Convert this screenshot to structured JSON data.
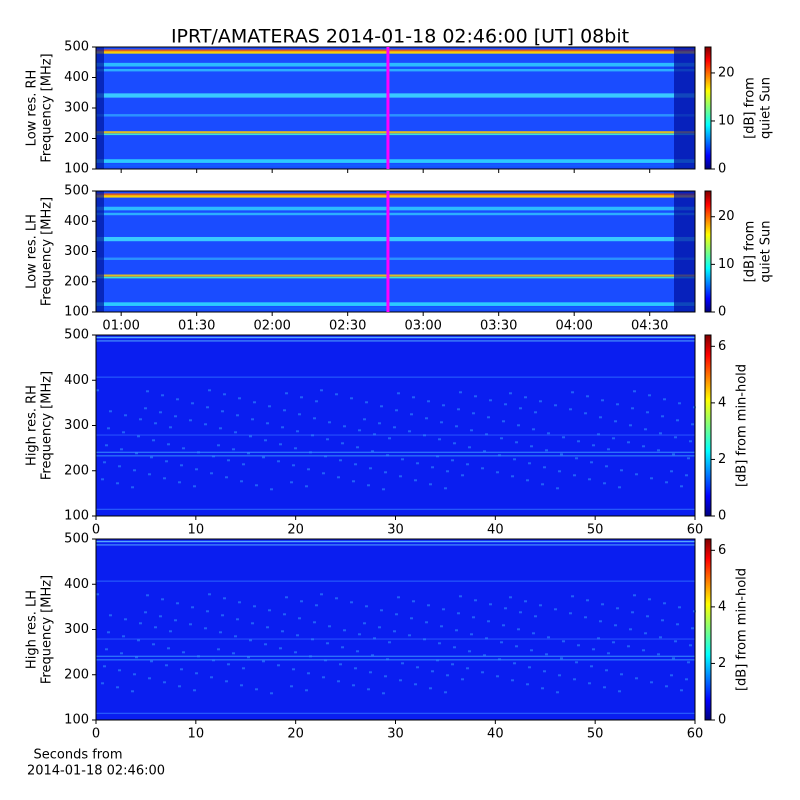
{
  "title": "IPRT/AMATERAS 2014-01-18 02:46:00 [UT]   08bit",
  "chart_data": [
    {
      "type": "heatmap",
      "colormap": "jet",
      "ylabel": [
        "Low res. RH",
        "Frequency [MHz]"
      ],
      "ylim": [
        100,
        500
      ],
      "yticks": [
        100,
        200,
        300,
        400,
        500
      ],
      "xlim": [
        50,
        288
      ],
      "clim": [
        0,
        25.4
      ],
      "cticks": [
        0,
        10,
        20
      ],
      "clabel": [
        "[dB] from",
        "quiet Sun"
      ],
      "vline": {
        "x": 166,
        "color": "#ff00ff"
      }
    },
    {
      "type": "heatmap",
      "colormap": "jet",
      "ylabel": [
        "Low res. LH",
        "Frequency [MHz]"
      ],
      "ylim": [
        100,
        500
      ],
      "yticks": [
        100,
        200,
        300,
        400,
        500
      ],
      "xlim": [
        50,
        288
      ],
      "xticks": [
        {
          "value": 60,
          "label": "01:00"
        },
        {
          "value": 90,
          "label": "01:30"
        },
        {
          "value": 120,
          "label": "02:00"
        },
        {
          "value": 150,
          "label": "02:30"
        },
        {
          "value": 180,
          "label": "03:00"
        },
        {
          "value": 210,
          "label": "03:30"
        },
        {
          "value": 240,
          "label": "04:00"
        },
        {
          "value": 270,
          "label": "04:30"
        }
      ],
      "clim": [
        0,
        25.4
      ],
      "cticks": [
        0,
        10,
        20
      ],
      "clabel": [
        "[dB] from",
        "quiet Sun"
      ],
      "vline": {
        "x": 166,
        "color": "#ff00ff"
      }
    },
    {
      "type": "heatmap",
      "colormap": "jet",
      "ylabel": [
        "High res. RH",
        "Frequency [MHz]"
      ],
      "ylim": [
        100,
        500
      ],
      "yticks": [
        100,
        200,
        300,
        400,
        500
      ],
      "xlim": [
        0,
        60
      ],
      "xticks": [
        0,
        10,
        20,
        30,
        40,
        50,
        60
      ],
      "clim": [
        0,
        6.4
      ],
      "cticks": [
        0,
        2,
        4,
        6
      ],
      "clabel": [
        "[dB] from min-hold"
      ]
    },
    {
      "type": "heatmap",
      "colormap": "jet",
      "ylabel": [
        "High res. LH",
        "Frequency [MHz]"
      ],
      "ylim": [
        100,
        500
      ],
      "yticks": [
        100,
        200,
        300,
        400,
        500
      ],
      "xlim": [
        0,
        60
      ],
      "xticks": [
        0,
        10,
        20,
        30,
        40,
        50,
        60
      ],
      "clim": [
        0,
        6.4
      ],
      "cticks": [
        0,
        2,
        4,
        6
      ],
      "clabel": [
        "[dB] from min-hold"
      ],
      "xlabel": [
        "Seconds from",
        "2014-01-18 02:46:00"
      ]
    }
  ]
}
